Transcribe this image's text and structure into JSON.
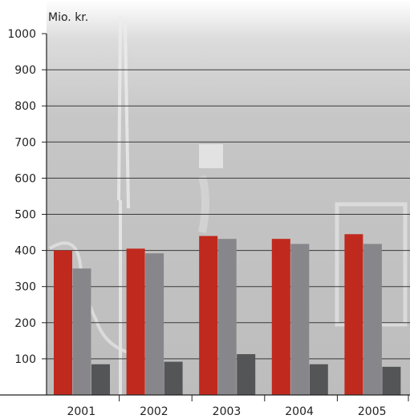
{
  "chart_data": {
    "type": "bar",
    "ylabel": "Mio. kr.",
    "ylim": [
      0,
      1000
    ],
    "yticks": [
      100,
      200,
      300,
      400,
      500,
      600,
      700,
      800,
      900,
      1000
    ],
    "grid": true,
    "legend": "none",
    "categories": [
      "2001",
      "2002",
      "2003",
      "2004",
      "2005"
    ],
    "series": [
      {
        "color": "#c0291d",
        "values": [
          400,
          405,
          440,
          432,
          445
        ]
      },
      {
        "color": "#87878b",
        "values": [
          350,
          392,
          432,
          418,
          418
        ]
      },
      {
        "color": "#545557",
        "values": [
          85,
          92,
          113,
          85,
          78
        ]
      }
    ]
  }
}
